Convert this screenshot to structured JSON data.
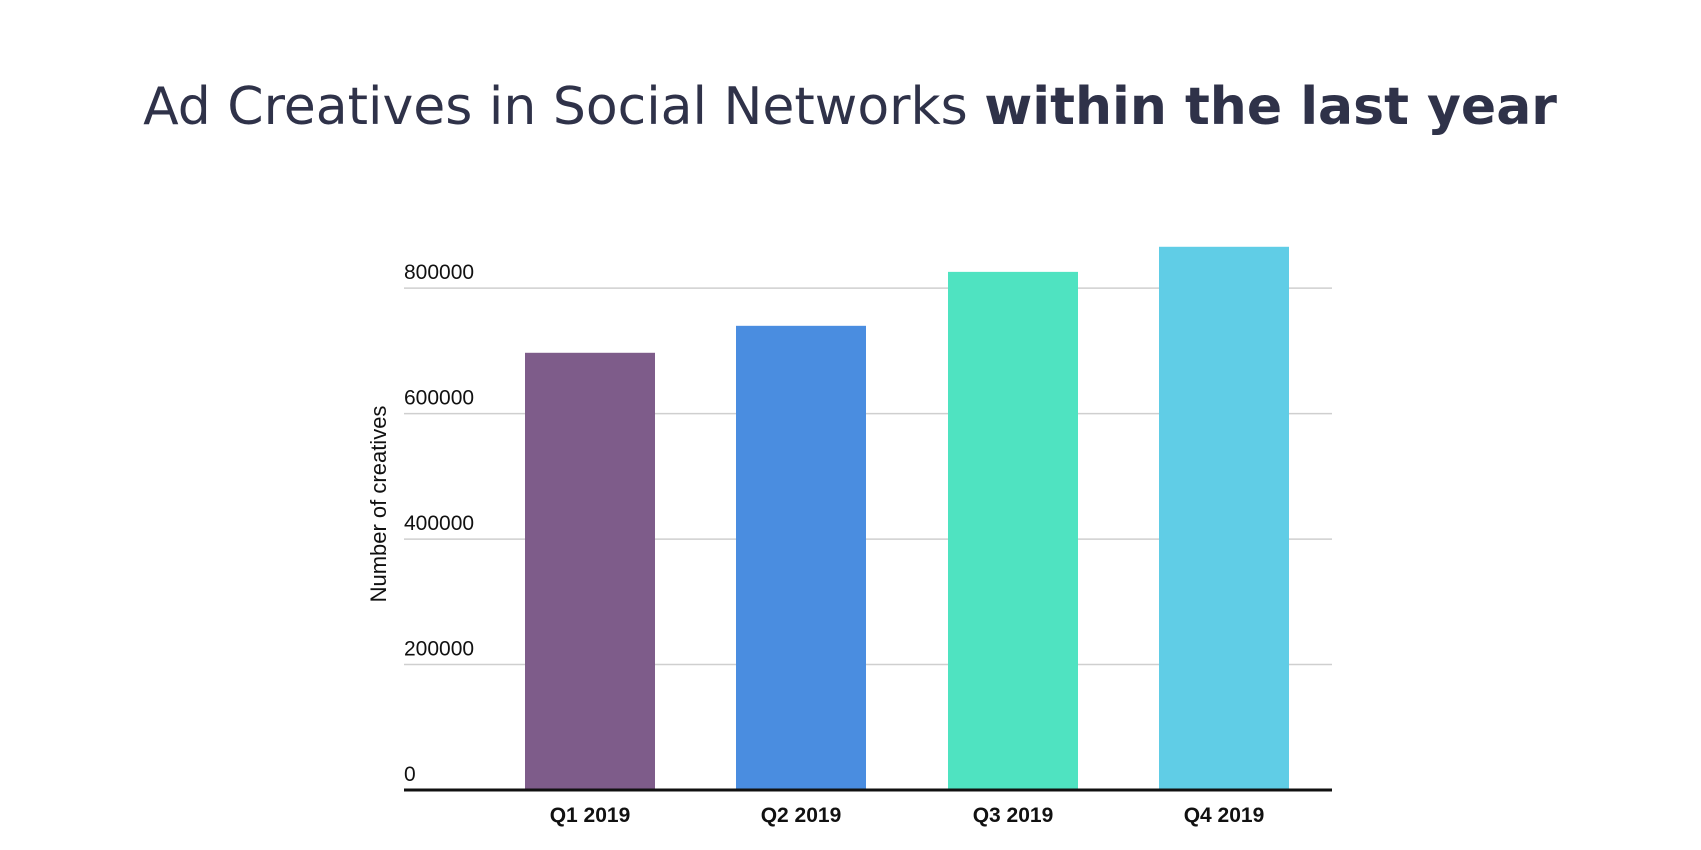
{
  "chart_data": {
    "type": "bar",
    "title_regular": "Ad Creatives in Social Networks ",
    "title_bold": "within the last year",
    "xlabel": "",
    "ylabel": "Number of creatives",
    "ylim": [
      0,
      880000
    ],
    "yticks": [
      0,
      200000,
      400000,
      600000,
      800000
    ],
    "ytick_labels": [
      "0",
      "200000",
      "400000",
      "600000",
      "800000"
    ],
    "grid": true,
    "legend": "none",
    "categories": [
      "Q1 2019",
      "Q2 2019",
      "Q3 2019",
      "Q4 2019"
    ],
    "values": [
      697000,
      740000,
      826000,
      866000
    ],
    "colors": [
      "#7e5c8a",
      "#4a8de0",
      "#4fe3c1",
      "#60cde6"
    ]
  }
}
